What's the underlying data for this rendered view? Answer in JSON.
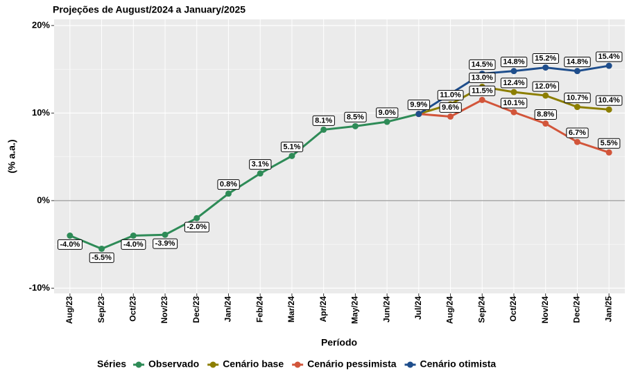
{
  "chart_data": {
    "type": "line",
    "title": "Projeções de August/2024 a January/2025",
    "x_label": "Período",
    "y_label": "(% a.a.)",
    "legend_title": "Séries",
    "legend_position": "bottom",
    "grid": true,
    "categories": [
      "Aug/23",
      "Sep/23",
      "Oct/23",
      "Nov/23",
      "Dec/23",
      "Jan/24",
      "Feb/24",
      "Mar/24",
      "Apr/24",
      "May/24",
      "Jun/24",
      "Jul/24",
      "Aug/24",
      "Sep/24",
      "Oct/24",
      "Nov/24",
      "Dec/24",
      "Jan/25"
    ],
    "ylim": [
      -10.6,
      20.7
    ],
    "yticks": [
      {
        "value": -10,
        "label": "-10%"
      },
      {
        "value": 0,
        "label": "0%"
      },
      {
        "value": 10,
        "label": "10%"
      },
      {
        "value": 20,
        "label": "20%"
      }
    ],
    "series": [
      {
        "name": "Observado",
        "color": "#2e8b57",
        "values": [
          -4.0,
          -5.5,
          -4.0,
          -3.9,
          -2.0,
          0.8,
          3.1,
          5.1,
          8.1,
          8.5,
          9.0,
          9.9,
          null,
          null,
          null,
          null,
          null,
          null
        ],
        "value_labels": [
          "-4.0%",
          "-5.5%",
          "-4.0%",
          "-3.9%",
          "-2.0%",
          "0.8%",
          "3.1%",
          "5.1%",
          "8.1%",
          "8.5%",
          "9.0%",
          "9.9%",
          null,
          null,
          null,
          null,
          null,
          null
        ]
      },
      {
        "name": "Cenário base",
        "color": "#8c7e00",
        "values": [
          null,
          null,
          null,
          null,
          null,
          null,
          null,
          null,
          null,
          null,
          null,
          9.9,
          11.0,
          13.0,
          12.4,
          12.0,
          10.7,
          10.4
        ],
        "value_labels": [
          null,
          null,
          null,
          null,
          null,
          null,
          null,
          null,
          null,
          null,
          null,
          null,
          "11.0%",
          "13.0%",
          "12.4%",
          "12.0%",
          "10.7%",
          "10.4%"
        ]
      },
      {
        "name": "Cenário pessimista",
        "color": "#d2553a",
        "values": [
          null,
          null,
          null,
          null,
          null,
          null,
          null,
          null,
          null,
          null,
          null,
          9.9,
          9.6,
          11.5,
          10.1,
          8.8,
          6.7,
          5.5
        ],
        "value_labels": [
          null,
          null,
          null,
          null,
          null,
          null,
          null,
          null,
          null,
          null,
          null,
          null,
          "9.6%",
          "11.5%",
          "10.1%",
          "8.8%",
          "6.7%",
          "5.5%"
        ]
      },
      {
        "name": "Cenário otimista",
        "color": "#1f4e8c",
        "values": [
          null,
          null,
          null,
          null,
          null,
          null,
          null,
          null,
          null,
          null,
          null,
          9.9,
          12.2,
          14.5,
          14.8,
          15.2,
          14.8,
          15.4
        ],
        "value_labels": [
          null,
          null,
          null,
          null,
          null,
          null,
          null,
          null,
          null,
          null,
          null,
          null,
          null,
          "14.5%",
          "14.8%",
          "15.2%",
          "14.8%",
          "15.4%"
        ]
      }
    ]
  }
}
